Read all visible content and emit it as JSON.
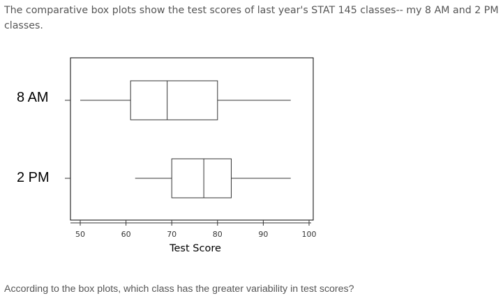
{
  "question": {
    "intro": "The comparative box plots show the test scores of last year's STAT 145 classes-- my 8 AM and 2 PM classes.",
    "prompt": "According to the box plots, which class has the greater variability in test scores?"
  },
  "chart_data": {
    "type": "boxplot",
    "xlabel": "Test Score",
    "xlim": [
      48,
      101
    ],
    "xticks": [
      50,
      60,
      70,
      80,
      90,
      100
    ],
    "grid": false,
    "series": [
      {
        "name": "8 AM",
        "min": 50,
        "q1": 61,
        "median": 69,
        "q3": 80,
        "max": 96
      },
      {
        "name": "2 PM",
        "min": 62,
        "q1": 70,
        "median": 77,
        "q3": 83,
        "max": 96
      }
    ]
  }
}
